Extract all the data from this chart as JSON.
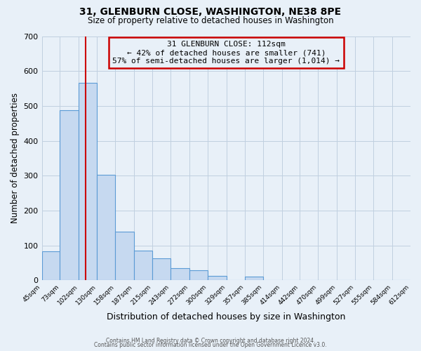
{
  "title": "31, GLENBURN CLOSE, WASHINGTON, NE38 8PE",
  "subtitle": "Size of property relative to detached houses in Washington",
  "xlabel": "Distribution of detached houses by size in Washington",
  "ylabel": "Number of detached properties",
  "bin_edges": [
    45,
    73,
    102,
    130,
    158,
    187,
    215,
    243,
    272,
    300,
    329,
    357,
    385,
    414,
    442,
    470,
    499,
    527,
    555,
    584,
    612
  ],
  "bar_heights": [
    83,
    487,
    566,
    302,
    139,
    86,
    62,
    35,
    29,
    13,
    0,
    11,
    0,
    0,
    0,
    0,
    0,
    0,
    0,
    0
  ],
  "bar_color": "#c6d9f0",
  "bar_edge_color": "#5b9bd5",
  "ylim": [
    0,
    700
  ],
  "yticks": [
    0,
    100,
    200,
    300,
    400,
    500,
    600,
    700
  ],
  "xtick_labels": [
    "45sqm",
    "73sqm",
    "102sqm",
    "130sqm",
    "158sqm",
    "187sqm",
    "215sqm",
    "243sqm",
    "272sqm",
    "300sqm",
    "329sqm",
    "357sqm",
    "385sqm",
    "414sqm",
    "442sqm",
    "470sqm",
    "499sqm",
    "527sqm",
    "555sqm",
    "584sqm",
    "612sqm"
  ],
  "vline_x": 112,
  "vline_color": "#cc0000",
  "annotation_title": "31 GLENBURN CLOSE: 112sqm",
  "annotation_line1": "← 42% of detached houses are smaller (741)",
  "annotation_line2": "57% of semi-detached houses are larger (1,014) →",
  "annotation_box_edge_color": "#cc0000",
  "grid_color": "#c0d0e0",
  "bg_color": "#e8f0f8",
  "footer1": "Contains HM Land Registry data © Crown copyright and database right 2024.",
  "footer2": "Contains public sector information licensed under the Open Government Licence v3.0."
}
